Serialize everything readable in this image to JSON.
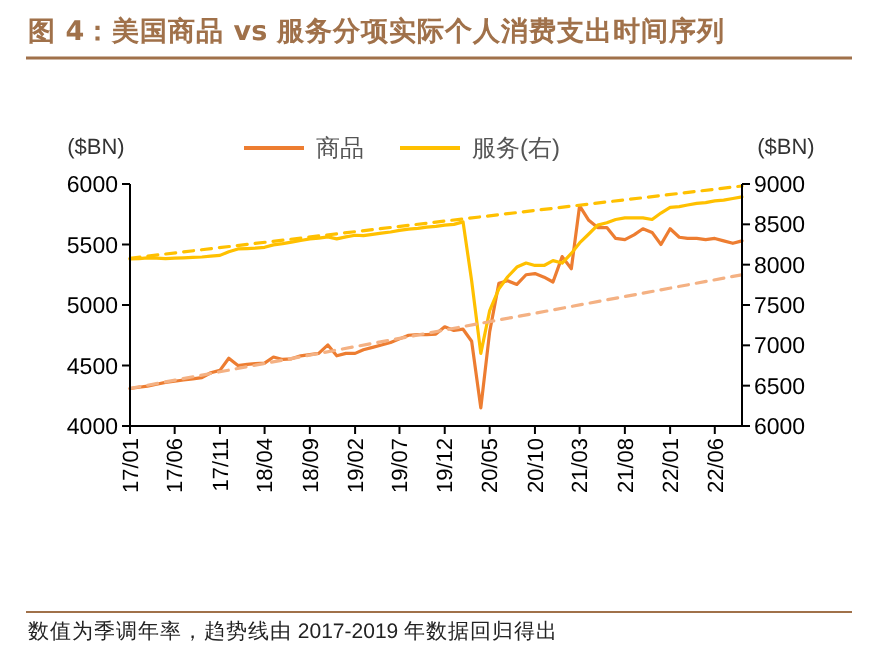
{
  "chart_data": {
    "type": "line",
    "title": "图 4：美国商品 vs 服务分项实际个人消费支出时间序列",
    "ylabel": "($BN)",
    "y2label": "($BN)",
    "annotations": [
      "数值为季调年率，趋势线由 2017-2019 年数据回归得出"
    ],
    "x": [
      "2017-01",
      "2017-02",
      "2017-03",
      "2017-04",
      "2017-05",
      "2017-06",
      "2017-07",
      "2017-08",
      "2017-09",
      "2017-10",
      "2017-11",
      "2017-12",
      "2018-01",
      "2018-02",
      "2018-03",
      "2018-04",
      "2018-05",
      "2018-06",
      "2018-07",
      "2018-08",
      "2018-09",
      "2018-10",
      "2018-11",
      "2018-12",
      "2019-01",
      "2019-02",
      "2019-03",
      "2019-04",
      "2019-05",
      "2019-06",
      "2019-07",
      "2019-08",
      "2019-09",
      "2019-10",
      "2019-11",
      "2019-12",
      "2020-01",
      "2020-02",
      "2020-03",
      "2020-04",
      "2020-05",
      "2020-06",
      "2020-07",
      "2020-08",
      "2020-09",
      "2020-10",
      "2020-11",
      "2020-12",
      "2021-01",
      "2021-02",
      "2021-03",
      "2021-04",
      "2021-05",
      "2021-06",
      "2021-07",
      "2021-08",
      "2021-09",
      "2021-10",
      "2021-11",
      "2021-12",
      "2022-01",
      "2022-02",
      "2022-03",
      "2022-04",
      "2022-05",
      "2022-06",
      "2022-07",
      "2022-08",
      "2022-09"
    ],
    "series": [
      {
        "name": "商品",
        "color": "#ed7d31",
        "values": [
          4310,
          4320,
          4330,
          4345,
          4360,
          4370,
          4380,
          4390,
          4400,
          4440,
          4460,
          4560,
          4500,
          4510,
          4515,
          4520,
          4570,
          4550,
          4555,
          4580,
          4590,
          4600,
          4670,
          4580,
          4600,
          4600,
          4630,
          4650,
          4670,
          4690,
          4720,
          4750,
          4755,
          4755,
          4760,
          4820,
          4790,
          4800,
          4700,
          4150,
          4780,
          5180,
          5200,
          5170,
          5250,
          5260,
          5230,
          5190,
          5400,
          5300,
          5820,
          5700,
          5640,
          5640,
          5550,
          5540,
          5580,
          5630,
          5600,
          5500,
          5630,
          5560,
          5550,
          5550,
          5540,
          5550,
          5530,
          5510,
          5530
        ]
      },
      {
        "name": "服务(右)",
        "color": "#ffc000",
        "axis": "y2",
        "values": [
          8070,
          8075,
          8085,
          8080,
          8075,
          8080,
          8085,
          8090,
          8095,
          8105,
          8115,
          8160,
          8195,
          8200,
          8205,
          8215,
          8245,
          8260,
          8280,
          8300,
          8320,
          8330,
          8345,
          8320,
          8345,
          8365,
          8360,
          8375,
          8390,
          8405,
          8425,
          8440,
          8450,
          8465,
          8475,
          8490,
          8500,
          8530,
          7800,
          6900,
          7430,
          7700,
          7850,
          7970,
          8020,
          7990,
          7990,
          8050,
          8020,
          8140,
          8270,
          8380,
          8490,
          8520,
          8560,
          8580,
          8580,
          8580,
          8560,
          8640,
          8710,
          8720,
          8740,
          8760,
          8770,
          8790,
          8800,
          8820,
          8840
        ]
      },
      {
        "type": "line",
        "color": "#f4b183",
        "line_style": "dashed",
        "x": [
          "2017-01",
          "2022-09"
        ],
        "values": [
          4310,
          5250
        ]
      },
      {
        "type": "line",
        "color": "#ffc000",
        "line_style": "dashed",
        "axis": "y2",
        "x": [
          "2017-01",
          "2022-09"
        ],
        "values": [
          8080,
          8975
        ]
      }
    ],
    "xlim": [
      "2017-01",
      "2022-09"
    ],
    "xticks": [
      {
        "value": "2017-01",
        "label": "17/01"
      },
      {
        "value": "2017-06",
        "label": "17/06"
      },
      {
        "value": "2017-11",
        "label": "17/11"
      },
      {
        "value": "2018-04",
        "label": "18/04"
      },
      {
        "value": "2018-09",
        "label": "18/09"
      },
      {
        "value": "2019-02",
        "label": "19/02"
      },
      {
        "value": "2019-07",
        "label": "19/07"
      },
      {
        "value": "2019-12",
        "label": "19/12"
      },
      {
        "value": "2020-05",
        "label": "20/05"
      },
      {
        "value": "2020-10",
        "label": "20/10"
      },
      {
        "value": "2021-03",
        "label": "21/03"
      },
      {
        "value": "2021-08",
        "label": "21/08"
      },
      {
        "value": "2022-01",
        "label": "22/01"
      },
      {
        "value": "2022-06",
        "label": "22/06"
      }
    ],
    "ylim": [
      4000,
      6000
    ],
    "yticks": [
      4000,
      4500,
      5000,
      5500,
      6000
    ],
    "y2lim": [
      6000,
      9000
    ],
    "y2ticks": [
      6000,
      6500,
      7000,
      7500,
      8000,
      8500,
      9000
    ],
    "grid": false,
    "legend": "top",
    "marker": "none",
    "line_style": "solid"
  }
}
